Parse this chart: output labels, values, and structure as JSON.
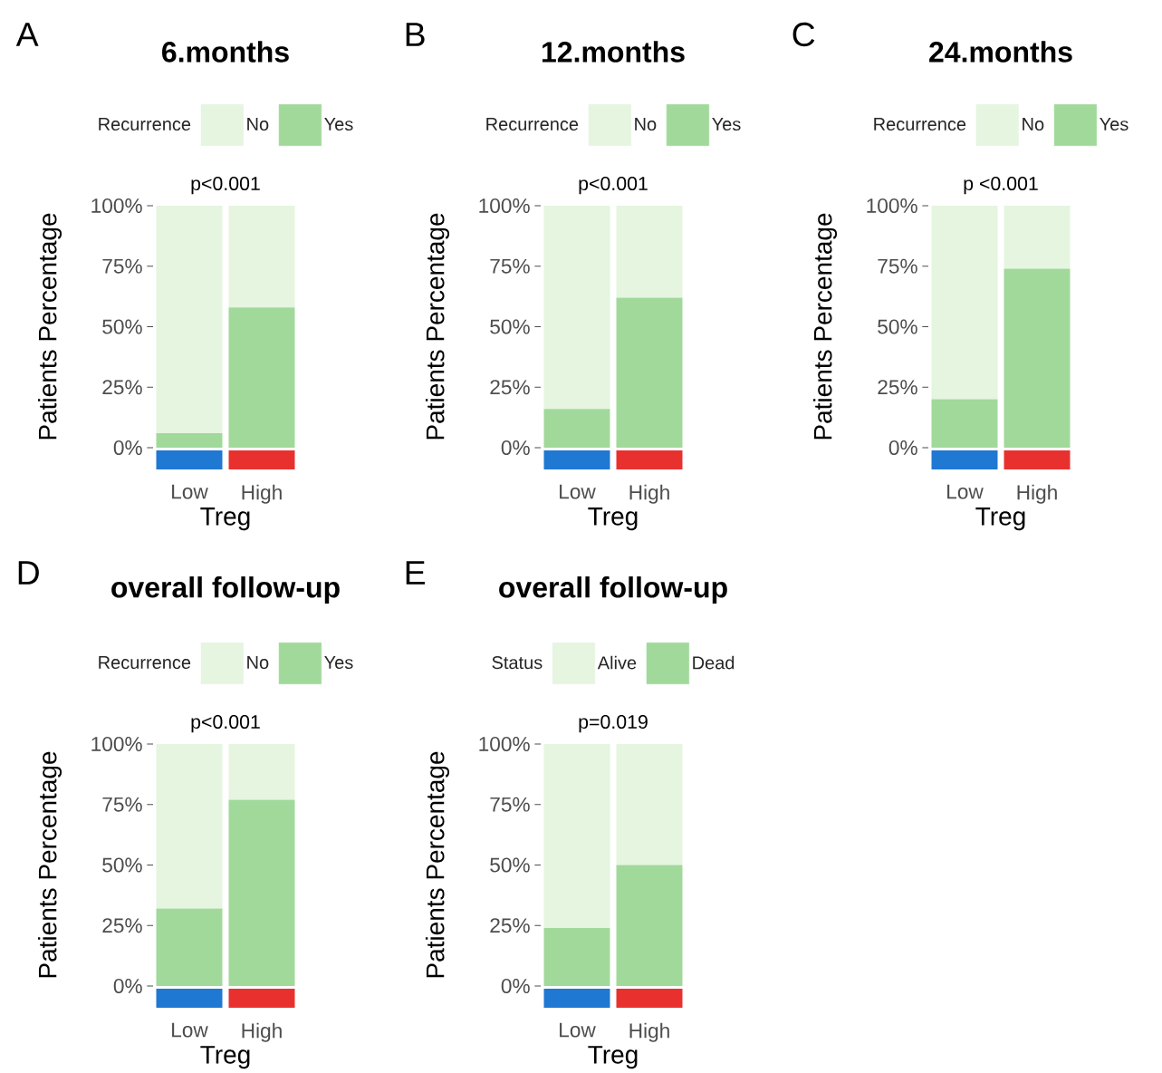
{
  "chart_data": [
    {
      "type": "bar",
      "stacked": true,
      "title": "6.months",
      "annotations": [
        "A",
        "p<0.001"
      ],
      "categories": [
        "Low",
        "High"
      ],
      "xlabel": "Treg",
      "ylabel": "Patients Percentage",
      "legend_title": "Recurrence",
      "legend": "top",
      "ylim": [
        0,
        100
      ],
      "yticks": [
        {
          "value": 0,
          "label": "0%"
        },
        {
          "value": 25,
          "label": "25%"
        },
        {
          "value": 50,
          "label": "50%"
        },
        {
          "value": 75,
          "label": "75%"
        },
        {
          "value": 100,
          "label": "100%"
        }
      ],
      "series": [
        {
          "name": "Yes",
          "color": "#a1d99b",
          "values": [
            6,
            58
          ]
        },
        {
          "name": "No",
          "color": "#e5f5e0",
          "values": [
            94,
            42
          ]
        }
      ]
    },
    {
      "type": "bar",
      "stacked": true,
      "title": "12.months",
      "annotations": [
        "B",
        "p<0.001"
      ],
      "categories": [
        "Low",
        "High"
      ],
      "xlabel": "Treg",
      "ylabel": "Patients Percentage",
      "legend_title": "Recurrence",
      "legend": "top",
      "ylim": [
        0,
        100
      ],
      "yticks": [
        {
          "value": 0,
          "label": "0%"
        },
        {
          "value": 25,
          "label": "25%"
        },
        {
          "value": 50,
          "label": "50%"
        },
        {
          "value": 75,
          "label": "75%"
        },
        {
          "value": 100,
          "label": "100%"
        }
      ],
      "series": [
        {
          "name": "Yes",
          "color": "#a1d99b",
          "values": [
            16,
            62
          ]
        },
        {
          "name": "No",
          "color": "#e5f5e0",
          "values": [
            84,
            38
          ]
        }
      ]
    },
    {
      "type": "bar",
      "stacked": true,
      "title": "24.months",
      "annotations": [
        "C",
        "p <0.001"
      ],
      "categories": [
        "Low",
        "High"
      ],
      "xlabel": "Treg",
      "ylabel": "Patients Percentage",
      "legend_title": "Recurrence",
      "legend": "top",
      "ylim": [
        0,
        100
      ],
      "yticks": [
        {
          "value": 0,
          "label": "0%"
        },
        {
          "value": 25,
          "label": "25%"
        },
        {
          "value": 50,
          "label": "50%"
        },
        {
          "value": 75,
          "label": "75%"
        },
        {
          "value": 100,
          "label": "100%"
        }
      ],
      "series": [
        {
          "name": "Yes",
          "color": "#a1d99b",
          "values": [
            20,
            74
          ]
        },
        {
          "name": "No",
          "color": "#e5f5e0",
          "values": [
            80,
            26
          ]
        }
      ]
    },
    {
      "type": "bar",
      "stacked": true,
      "title": "overall follow-up",
      "annotations": [
        "D",
        "p<0.001"
      ],
      "categories": [
        "Low",
        "High"
      ],
      "xlabel": "Treg",
      "ylabel": "Patients Percentage",
      "legend_title": "Recurrence",
      "legend": "top",
      "ylim": [
        0,
        100
      ],
      "yticks": [
        {
          "value": 0,
          "label": "0%"
        },
        {
          "value": 25,
          "label": "25%"
        },
        {
          "value": 50,
          "label": "50%"
        },
        {
          "value": 75,
          "label": "75%"
        },
        {
          "value": 100,
          "label": "100%"
        }
      ],
      "series": [
        {
          "name": "Yes",
          "color": "#a1d99b",
          "values": [
            32,
            77
          ]
        },
        {
          "name": "No",
          "color": "#e5f5e0",
          "values": [
            68,
            23
          ]
        }
      ]
    },
    {
      "type": "bar",
      "stacked": true,
      "title": "overall follow-up",
      "annotations": [
        "E",
        "p=0.019"
      ],
      "categories": [
        "Low",
        "High"
      ],
      "xlabel": "Treg",
      "ylabel": "Patients Percentage",
      "legend_title": "Status",
      "legend": "top",
      "ylim": [
        0,
        100
      ],
      "yticks": [
        {
          "value": 0,
          "label": "0%"
        },
        {
          "value": 25,
          "label": "25%"
        },
        {
          "value": 50,
          "label": "50%"
        },
        {
          "value": 75,
          "label": "75%"
        },
        {
          "value": 100,
          "label": "100%"
        }
      ],
      "series": [
        {
          "name": "Dead",
          "color": "#a1d99b",
          "values": [
            24,
            50
          ]
        },
        {
          "name": "Alive",
          "color": "#e5f5e0",
          "values": [
            76,
            50
          ]
        }
      ]
    }
  ]
}
